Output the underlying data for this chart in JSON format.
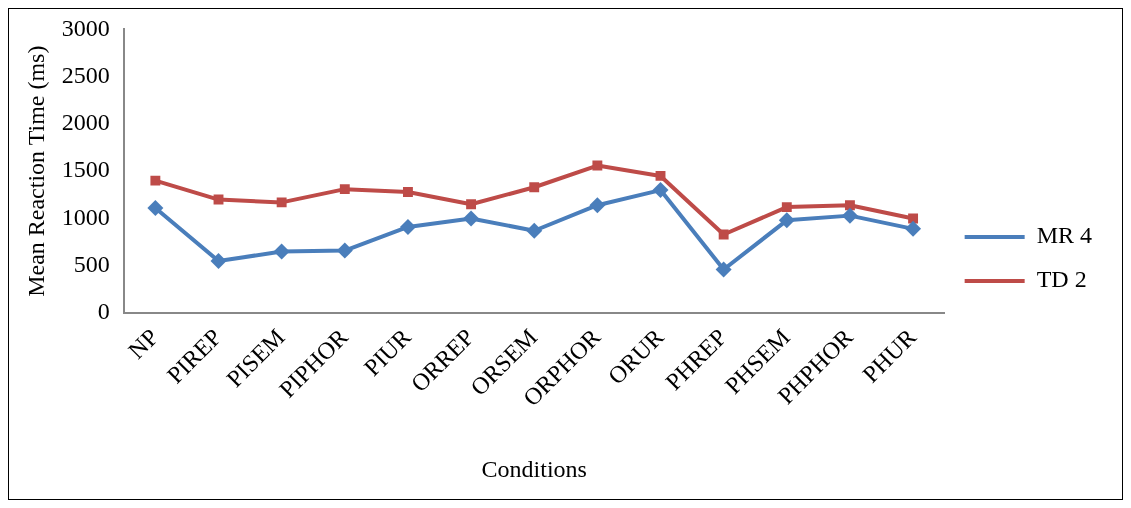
{
  "chart_data": {
    "type": "line",
    "xlabel": "Conditions",
    "ylabel": "Mean Reaction Time (ms)",
    "categories": [
      "NP",
      "PIREP",
      "PISEM",
      "PIPHOR",
      "PIUR",
      "ORREP",
      "ORSEM",
      "ORPHOR",
      "ORUR",
      "PHREP",
      "PHSEM",
      "PHPHOR",
      "PHUR"
    ],
    "series": [
      {
        "name": "MR 4",
        "color": "#4a7ebb",
        "marker": "diamond",
        "values": [
          1110,
          550,
          650,
          660,
          910,
          1000,
          870,
          1140,
          1300,
          460,
          980,
          1030,
          890
        ]
      },
      {
        "name": "TD 2",
        "color": "#be4b48",
        "marker": "square",
        "values": [
          1400,
          1200,
          1170,
          1310,
          1280,
          1150,
          1330,
          1560,
          1450,
          830,
          1120,
          1140,
          1000
        ]
      }
    ],
    "ylim": [
      0,
      3000
    ],
    "yticks": [
      0,
      500,
      1000,
      1500,
      2000,
      2500,
      3000
    ],
    "grid": false,
    "legend": "right",
    "line_style": "solid"
  }
}
